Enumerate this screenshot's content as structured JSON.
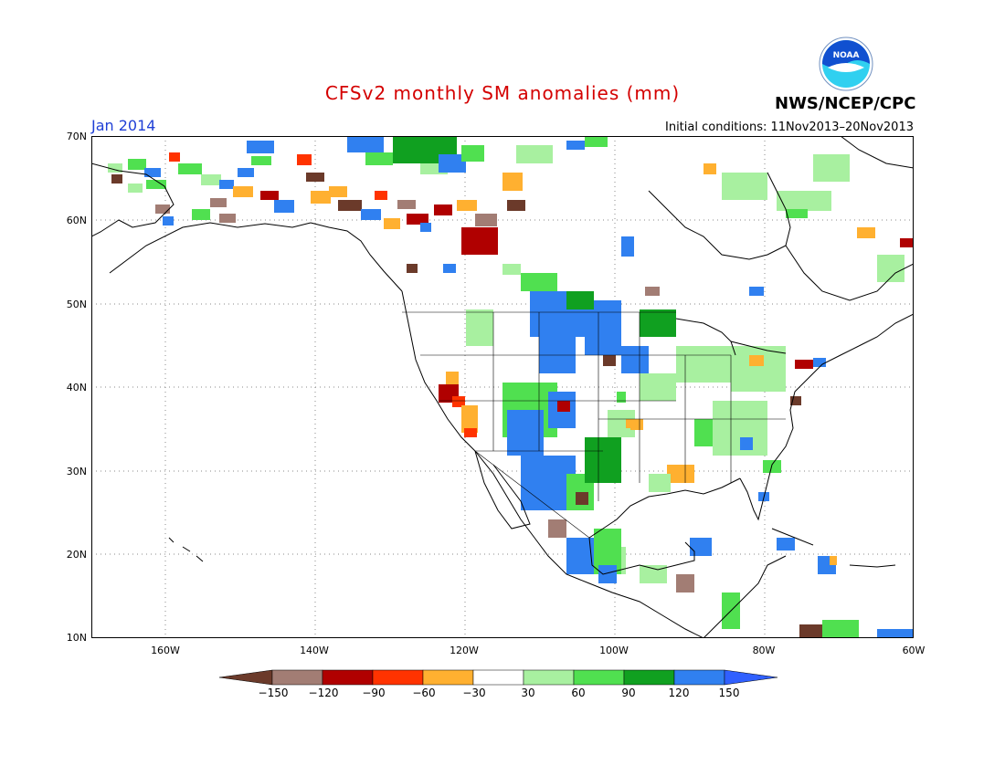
{
  "header": {
    "title": "CFSv2 monthly SM anomalies (mm)",
    "period": "Jan 2014",
    "initial_conditions": "Initial conditions: 11Nov2013–20Nov2013",
    "agency": "NWS/NCEP/CPC",
    "logo_text": "NOAA"
  },
  "axes": {
    "lat_labels": [
      "70N",
      "60N",
      "50N",
      "40N",
      "30N",
      "20N",
      "10N"
    ],
    "lon_labels": [
      "160W",
      "140W",
      "120W",
      "100W",
      "80W",
      "60W"
    ]
  },
  "colorbar": {
    "labels": [
      "−150",
      "−120",
      "−90",
      "−60",
      "−30",
      "30",
      "60",
      "90",
      "120",
      "150"
    ],
    "colors": [
      "#6b3a2a",
      "#a27d74",
      "#b00000",
      "#ff3300",
      "#ffb030",
      "#ffffff",
      "#a8f0a0",
      "#50e050",
      "#10a020",
      "#3080f0",
      "#3060ff"
    ]
  },
  "colors": {
    "frame": "#000000",
    "title": "#d40000",
    "period": "#1f3fd6",
    "logo_blue": "#1050d0",
    "logo_cyan": "#30d0f0"
  }
}
